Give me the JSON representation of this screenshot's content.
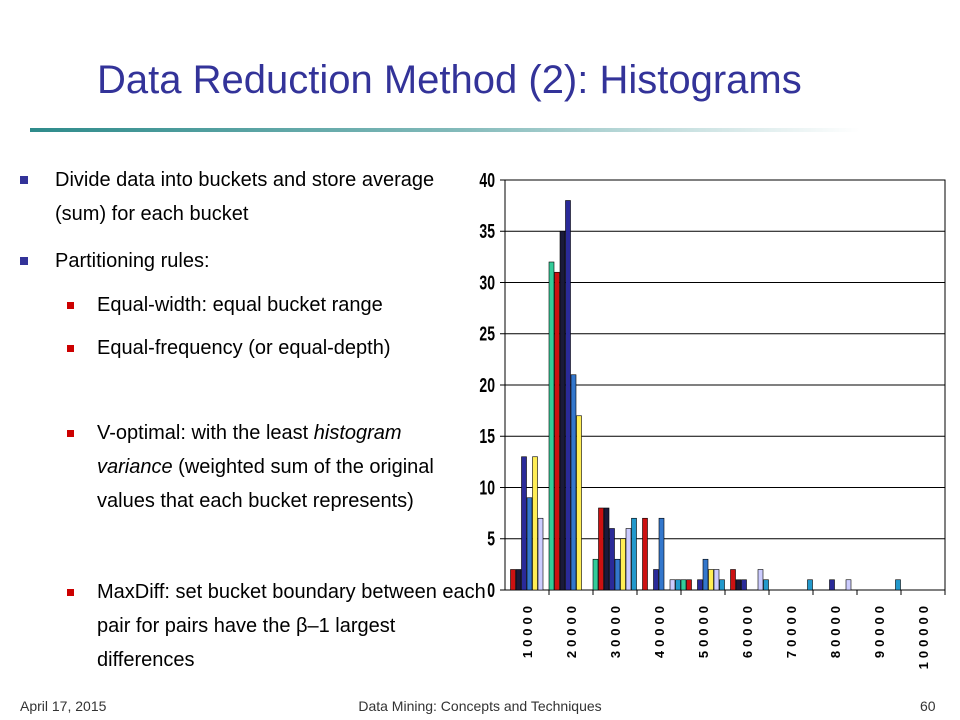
{
  "slide": {
    "title": "Data Reduction Method (2): Histograms",
    "bullets": [
      {
        "text": "Divide data into buckets and store average (sum) for each bucket"
      },
      {
        "text": "Partitioning rules:",
        "sub": [
          {
            "text": "Equal-width: equal bucket range"
          },
          {
            "text": "Equal-frequency (or equal-depth)"
          },
          {
            "parts": [
              "V-optimal: with the least ",
              "histogram variance",
              " (weighted sum of the original values that each bucket represents)"
            ]
          },
          {
            "text": "MaxDiff: set bucket boundary between each pair for pairs have the β–1 largest differences"
          }
        ]
      }
    ],
    "footer": {
      "date": "April 17, 2015",
      "center": "Data Mining: Concepts and Techniques",
      "page": "60"
    }
  },
  "chart_data": {
    "type": "bar",
    "categories": [
      "10000",
      "20000",
      "30000",
      "40000",
      "50000",
      "60000",
      "70000",
      "80000",
      "90000",
      "100000"
    ],
    "series": [
      {
        "color": "#33cc99",
        "values": [
          0,
          32,
          3,
          0,
          1,
          0,
          0,
          0,
          0,
          0
        ]
      },
      {
        "color": "#cc1111",
        "values": [
          2,
          31,
          8,
          7,
          1,
          2,
          0,
          0,
          0,
          0
        ]
      },
      {
        "color": "#1a1a3a",
        "values": [
          2,
          35,
          8,
          0,
          0,
          1,
          0,
          0,
          0,
          0
        ]
      },
      {
        "color": "#2a2a99",
        "values": [
          13,
          38,
          6,
          2,
          1,
          1,
          0,
          1,
          0,
          0
        ]
      },
      {
        "color": "#3377cc",
        "values": [
          9,
          21,
          3,
          7,
          3,
          0,
          0,
          0,
          0,
          0
        ]
      },
      {
        "color": "#ffee55",
        "values": [
          13,
          17,
          5,
          0,
          2,
          0,
          0,
          0,
          0,
          0
        ]
      },
      {
        "color": "#ccccff",
        "values": [
          7,
          0,
          6,
          1,
          2,
          2,
          0,
          1,
          0,
          0
        ]
      },
      {
        "color": "#2299cc",
        "values": [
          0,
          0,
          7,
          1,
          1,
          1,
          1,
          0,
          1,
          0
        ]
      }
    ],
    "ylim": [
      0,
      40
    ],
    "yticks": [
      0,
      5,
      10,
      15,
      20,
      25,
      30,
      35,
      40
    ],
    "grid": true
  }
}
